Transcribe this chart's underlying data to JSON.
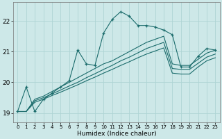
{
  "xlabel": "Humidex (Indice chaleur)",
  "bg_color": "#cde8e8",
  "grid_color": "#aed4d4",
  "line_color": "#1a6b6b",
  "xlim": [
    -0.5,
    23.5
  ],
  "ylim": [
    18.7,
    22.6
  ],
  "yticks": [
    19,
    20,
    21,
    22
  ],
  "xticks": [
    0,
    1,
    2,
    3,
    4,
    5,
    6,
    7,
    8,
    9,
    10,
    11,
    12,
    13,
    14,
    15,
    16,
    17,
    18,
    19,
    20,
    21,
    22,
    23
  ],
  "x_main": [
    0,
    1,
    2,
    3,
    4,
    5,
    6,
    7,
    8,
    9,
    10,
    11,
    12,
    13,
    14,
    15,
    16,
    17,
    18,
    19,
    20,
    21,
    22,
    23
  ],
  "y_main": [
    19.05,
    19.85,
    19.05,
    19.45,
    19.65,
    19.85,
    20.05,
    21.05,
    20.6,
    20.55,
    21.6,
    22.05,
    22.3,
    22.15,
    21.85,
    21.85,
    21.8,
    21.7,
    21.55,
    20.5,
    20.5,
    20.85,
    21.1,
    21.05
  ],
  "y_line2": [
    19.05,
    19.05,
    19.45,
    19.55,
    19.7,
    19.85,
    20.0,
    20.15,
    20.3,
    20.45,
    20.6,
    20.7,
    20.85,
    21.0,
    21.15,
    21.3,
    21.4,
    21.5,
    20.6,
    20.55,
    20.55,
    20.75,
    20.95,
    21.05
  ],
  "y_line3": [
    19.05,
    19.05,
    19.4,
    19.5,
    19.62,
    19.75,
    19.88,
    20.0,
    20.15,
    20.28,
    20.42,
    20.55,
    20.7,
    20.82,
    20.96,
    21.1,
    21.2,
    21.3,
    20.45,
    20.42,
    20.42,
    20.62,
    20.82,
    20.92
  ],
  "y_line4": [
    19.05,
    19.05,
    19.35,
    19.45,
    19.57,
    19.68,
    19.8,
    19.92,
    20.05,
    20.17,
    20.3,
    20.42,
    20.55,
    20.67,
    20.8,
    20.92,
    21.02,
    21.12,
    20.3,
    20.27,
    20.27,
    20.5,
    20.7,
    20.8
  ]
}
